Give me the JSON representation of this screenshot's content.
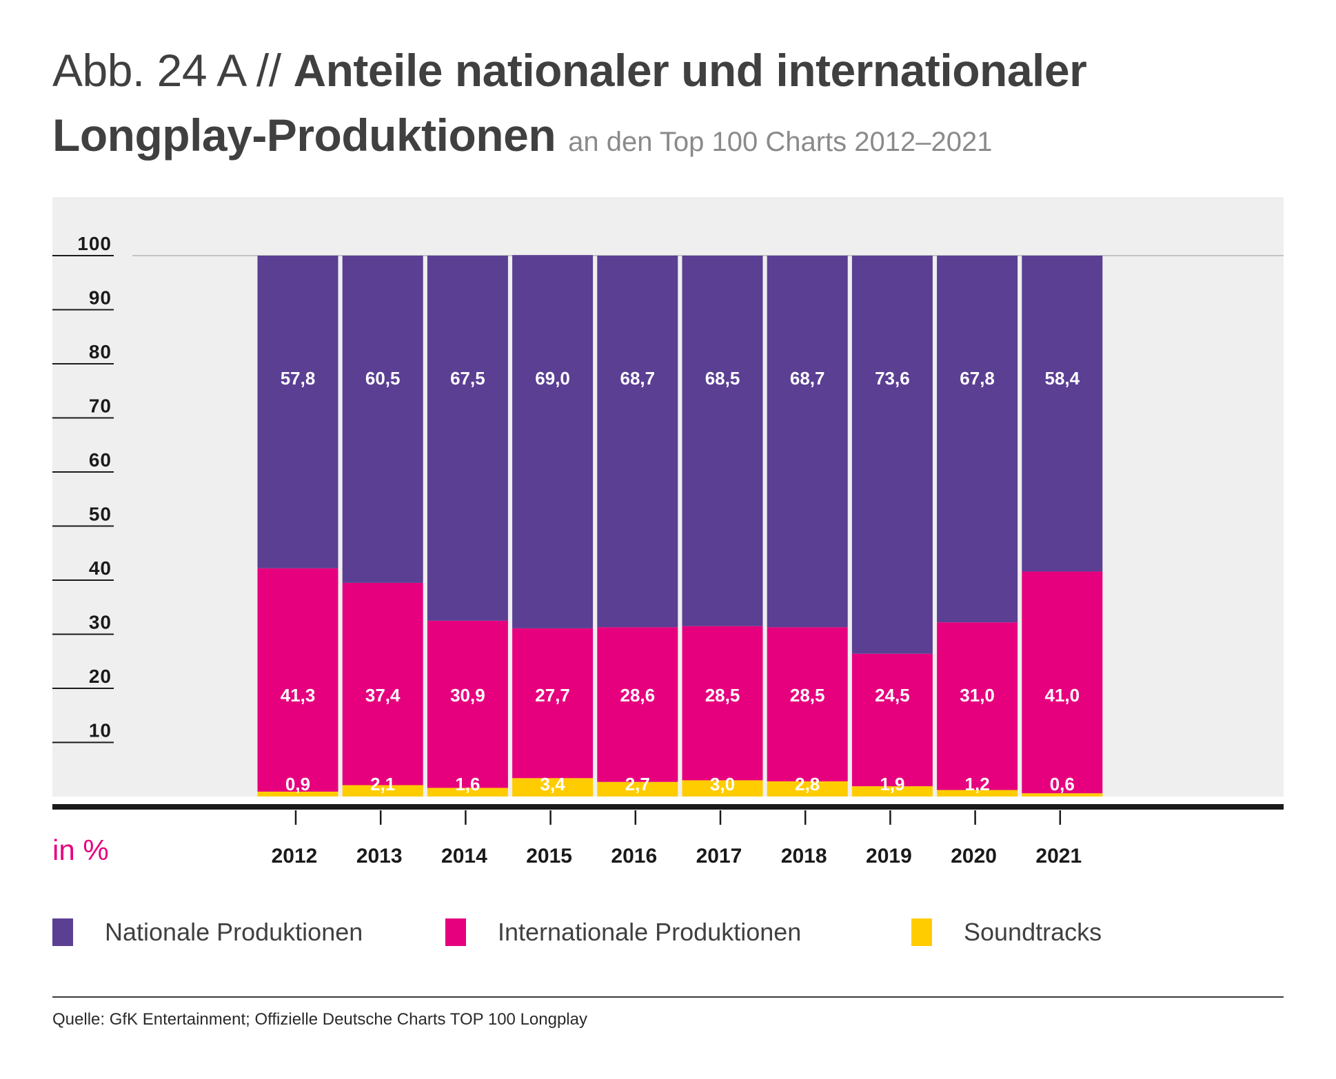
{
  "title": {
    "prefix": "Abb. 24 A //",
    "main_line1": "Anteile nationaler und internationaler",
    "main_line2": "Longplay-Produktionen",
    "subtitle": "an den Top 100 Charts 2012–2021"
  },
  "unit_label": "in %",
  "source": "Quelle: GfK Entertainment; Offizielle Deutsche Charts TOP 100 Longplay",
  "colors": {
    "nationale": "#5a3f93",
    "internationale": "#e6007e",
    "soundtracks": "#ffcc00",
    "plot_background": "#efefef",
    "axis": "#1a1a1a"
  },
  "legend": [
    {
      "label": "Nationale Produktionen",
      "color": "#5a3f93"
    },
    {
      "label": "Internationale Produktionen",
      "color": "#e6007e"
    },
    {
      "label": "Soundtracks",
      "color": "#ffcc00"
    }
  ],
  "chart_data": {
    "type": "bar",
    "stacked": true,
    "categories": [
      "2012",
      "2013",
      "2014",
      "2015",
      "2016",
      "2017",
      "2018",
      "2019",
      "2020",
      "2021"
    ],
    "series": [
      {
        "name": "Soundtracks",
        "values": [
          0.9,
          2.1,
          1.6,
          3.4,
          2.7,
          3.0,
          2.8,
          1.9,
          1.2,
          0.6
        ],
        "labels": [
          "0,9",
          "2,1",
          "1,6",
          "3,4",
          "2,7",
          "3,0",
          "2,8",
          "1,9",
          "1,2",
          "0,6"
        ]
      },
      {
        "name": "Internationale Produktionen",
        "values": [
          41.3,
          37.4,
          30.9,
          27.7,
          28.6,
          28.5,
          28.5,
          24.5,
          31.0,
          41.0
        ],
        "labels": [
          "41,3",
          "37,4",
          "30,9",
          "27,7",
          "28,6",
          "28,5",
          "28,5",
          "24,5",
          "31,0",
          "41,0"
        ]
      },
      {
        "name": "Nationale Produktionen",
        "values": [
          57.8,
          60.5,
          67.5,
          69.0,
          68.7,
          68.5,
          68.7,
          73.6,
          67.8,
          58.4
        ],
        "labels": [
          "57,8",
          "60,5",
          "67,5",
          "69,0",
          "68,7",
          "68,5",
          "68,7",
          "73,6",
          "67,8",
          "58,4"
        ]
      }
    ],
    "yticks": [
      "10",
      "20",
      "30",
      "40",
      "50",
      "60",
      "70",
      "80",
      "90",
      "100"
    ],
    "ylim": [
      0,
      100
    ],
    "ylabel": "in %",
    "grid": false,
    "legend_position": "bottom"
  }
}
